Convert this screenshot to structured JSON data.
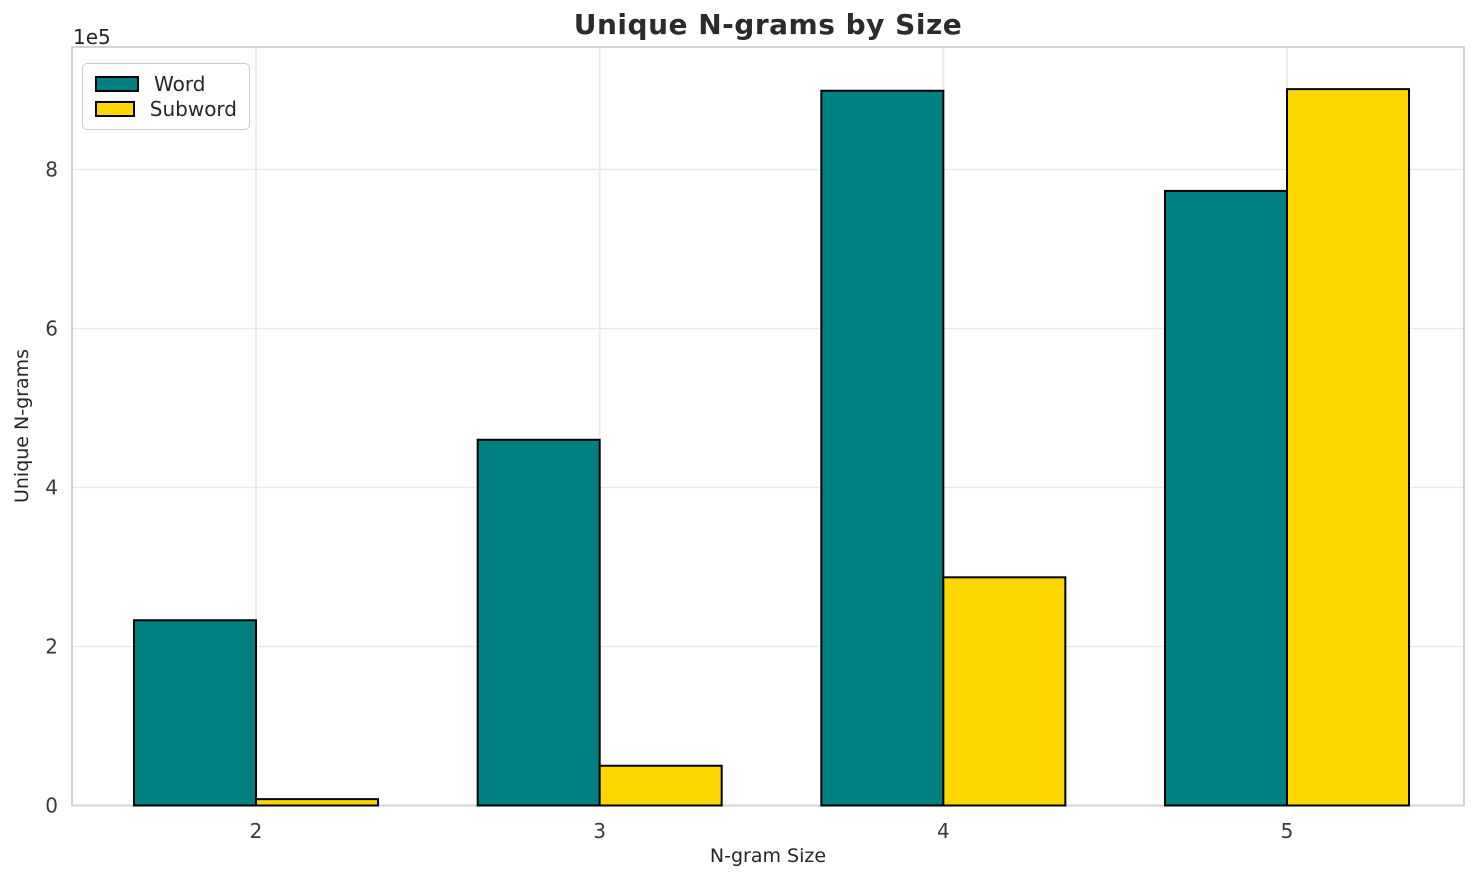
{
  "chart_data": {
    "type": "bar",
    "title": "Unique N-grams by Size",
    "xlabel": "N-gram Size",
    "ylabel": "Unique N-grams",
    "y_offset_label": "1e5",
    "categories": [
      "2",
      "3",
      "4",
      "5"
    ],
    "series": [
      {
        "name": "Word",
        "color": "#008080",
        "values": [
          233000,
          460000,
          899000,
          773000
        ]
      },
      {
        "name": "Subword",
        "color": "#FFD700",
        "values": [
          8000,
          50000,
          287000,
          901000
        ]
      }
    ],
    "bar_edge_color": "#000000",
    "y_ticks_1e5": [
      0,
      2,
      4,
      6,
      8
    ],
    "ylim": [
      0,
      954000
    ],
    "grid": true,
    "legend_position": "upper left"
  },
  "style_colors": {
    "grid": "#e9e9e9",
    "spine": "#d4d4d4",
    "tick_text": "#3a3a3a",
    "background": "#ffffff"
  }
}
